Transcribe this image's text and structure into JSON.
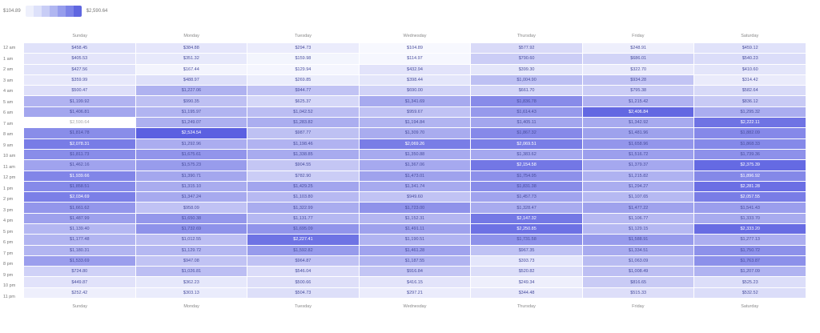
{
  "legend": {
    "min_label": "$104.89",
    "max_label": "$2,590.64"
  },
  "chart_data": {
    "type": "heatmap",
    "min": 104.89,
    "max": 2590.64,
    "x_categories": [
      "Sunday",
      "Monday",
      "Tuesday",
      "Wednesday",
      "Thursday",
      "Friday",
      "Saturday"
    ],
    "y_categories": [
      "12 am",
      "1 am",
      "2 am",
      "3 am",
      "4 am",
      "5 am",
      "6 am",
      "7 am",
      "8 am",
      "9 am",
      "10 am",
      "11 am",
      "12 pm",
      "1 pm",
      "2 pm",
      "3 pm",
      "4 pm",
      "5 pm",
      "6 pm",
      "7 pm",
      "8 pm",
      "9 pm",
      "10 pm",
      "11 pm"
    ],
    "values": [
      [
        "$458.45",
        "$384.88",
        "$294.73",
        "$104.89",
        "$577.92",
        "$248.91",
        "$459.12"
      ],
      [
        "$405.53",
        "$351.32",
        "$159.98",
        "$114.97",
        "$790.60",
        "$686.01",
        "$540.23"
      ],
      [
        "$427.56",
        "$167.44",
        "$129.94",
        "$432.94",
        "$399.30",
        "$322.70",
        "$410.60"
      ],
      [
        "$359.99",
        "$488.97",
        "$269.85",
        "$398.44",
        "$1,004.90",
        "$934.28",
        "$314.42"
      ],
      [
        "$500.47",
        "$1,227.06",
        "$944.77",
        "$690.00",
        "$661.70",
        "$795.38",
        "$582.64"
      ],
      [
        "$1,199.92",
        "$990.35",
        "$625.37",
        "$1,341.69",
        "$1,836.78",
        "$1,215.42",
        "$836.12"
      ],
      [
        "$1,406.81",
        "$1,195.97",
        "$1,042.52",
        "$959.67",
        "$1,614.43",
        "$2,406.84",
        "$1,295.32"
      ],
      [
        "$2,590.64",
        "$1,249.07",
        "$1,283.82",
        "$1,194.84",
        "$1,405.11",
        "$1,342.92",
        "$2,222.11"
      ],
      [
        "$1,814.78",
        "$2,524.54",
        "$987.77",
        "$1,309.70",
        "$1,867.32",
        "$1,481.96",
        "$1,882.09"
      ],
      [
        "$2,078.31",
        "$1,292.96",
        "$1,198.46",
        "$2,069.26",
        "$2,069.51",
        "$1,658.96",
        "$1,868.33"
      ],
      [
        "$1,811.73",
        "$1,675.61",
        "$1,338.85",
        "$1,350.88",
        "$1,383.62",
        "$1,516.72",
        "$1,739.36"
      ],
      [
        "$1,462.16",
        "$1,575.23",
        "$904.55",
        "$1,367.06",
        "$2,154.58",
        "$1,379.37",
        "$2,375.39"
      ],
      [
        "$1,939.66",
        "$1,390.71",
        "$782.90",
        "$1,473.01",
        "$1,754.95",
        "$1,215.82",
        "$1,896.92"
      ],
      [
        "$1,858.51",
        "$1,315.10",
        "$1,429.25",
        "$1,341.74",
        "$1,831.38",
        "$1,294.27",
        "$2,281.28"
      ],
      [
        "$2,034.69",
        "$1,347.24",
        "$1,103.80",
        "$949.60",
        "$1,457.73",
        "$1,107.65",
        "$2,057.55"
      ],
      [
        "$1,661.62",
        "$958.09",
        "$1,322.99",
        "$1,723.00",
        "$1,328.47",
        "$1,477.22",
        "$1,541.43"
      ],
      [
        "$1,487.99",
        "$1,650.38",
        "$1,131.77",
        "$1,152.31",
        "$2,147.32",
        "$1,106.77",
        "$1,333.70"
      ],
      [
        "$1,139.40",
        "$1,732.69",
        "$1,695.09",
        "$1,491.11",
        "$2,250.85",
        "$1,129.15",
        "$2,333.20"
      ],
      [
        "$1,177.48",
        "$1,012.55",
        "$2,227.41",
        "$1,190.51",
        "$1,731.58",
        "$1,588.91",
        "$1,277.13"
      ],
      [
        "$1,180.31",
        "$1,129.72",
        "$1,592.82",
        "$1,461.28",
        "$967.35",
        "$1,334.51",
        "$1,750.72"
      ],
      [
        "$1,533.69",
        "$947.08",
        "$964.87",
        "$1,187.55",
        "$393.73",
        "$1,063.09",
        "$1,763.87"
      ],
      [
        "$724.80",
        "$1,026.81",
        "$546.04",
        "$916.84",
        "$520.82",
        "$1,008.49",
        "$1,207.09"
      ],
      [
        "$449.87",
        "$362.23",
        "$500.66",
        "$416.15",
        "$249.34",
        "$816.65",
        "$525.23"
      ],
      [
        "$252.42",
        "$303.13",
        "$504.73",
        "$297.21",
        "$344.48",
        "$515.33",
        "$532.52"
      ]
    ]
  }
}
